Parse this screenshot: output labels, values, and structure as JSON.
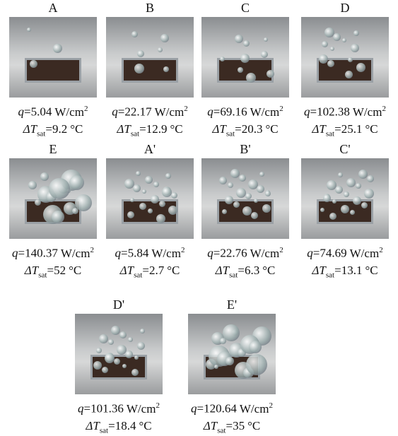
{
  "symbols": {
    "q": "q",
    "equals": "=",
    "q_unit": "W/cm",
    "q_unit_exp": "2",
    "dT": "ΔT",
    "dT_sub": "sat",
    "dT_unit": "°C"
  },
  "panels": [
    {
      "label": "A",
      "q": 5.04,
      "dT": 9.2
    },
    {
      "label": "B",
      "q": 22.17,
      "dT": 12.9
    },
    {
      "label": "C",
      "q": 69.16,
      "dT": 20.3
    },
    {
      "label": "D",
      "q": 102.38,
      "dT": 25.1
    },
    {
      "label": "E",
      "q": 140.37,
      "dT": 52
    },
    {
      "label": "A'",
      "q": 5.84,
      "dT": 2.7
    },
    {
      "label": "B'",
      "q": 22.76,
      "dT": 6.3
    },
    {
      "label": "C'",
      "q": 74.69,
      "dT": 13.1
    },
    {
      "label": "D'",
      "q": 101.36,
      "dT": 18.4
    },
    {
      "label": "E'",
      "q": 120.64,
      "dT": 35
    }
  ]
}
